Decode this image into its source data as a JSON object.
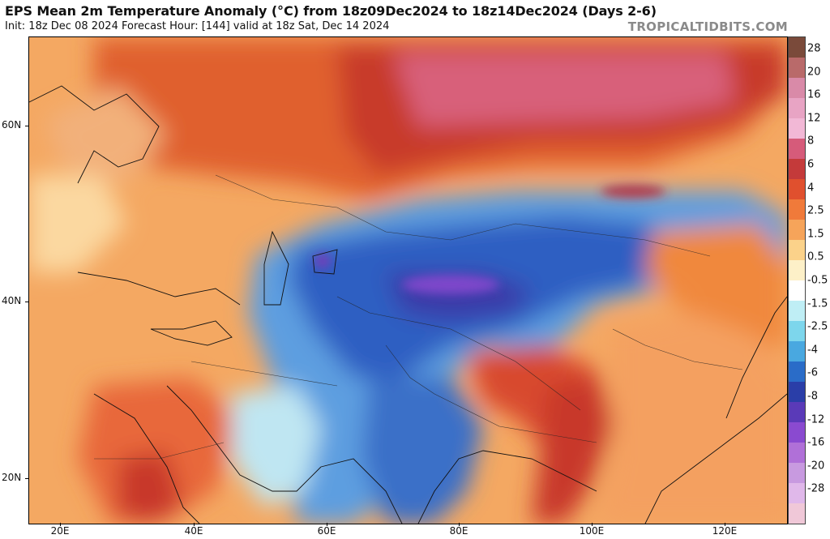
{
  "header": {
    "title": "EPS Mean 2m Temperature Anomaly (°C) from 18z09Dec2024 to 18z14Dec2024 (Days 2-6)",
    "subtitle": "Init: 18z Dec 08 2024   Forecast Hour: [144]   valid at 18z Sat, Dec 14 2024",
    "brand": "TROPICALTIDBITS.COM"
  },
  "axes": {
    "latitudes": [
      "60N",
      "40N",
      "20N"
    ],
    "longitudes": [
      "20E",
      "40E",
      "60E",
      "80E",
      "100E",
      "120E"
    ]
  },
  "colorbar": {
    "labels": [
      "28",
      "20",
      "16",
      "12",
      "8",
      "6",
      "4",
      "2.5",
      "1.5",
      "0.5",
      "-0.5",
      "-1.5",
      "-2.5",
      "-4",
      "-6",
      "-8",
      "-12",
      "-16",
      "-20",
      "-28"
    ],
    "colors": [
      "#7a4a3a",
      "#b96a6a",
      "#d98aa8",
      "#e8a4c4",
      "#f2b8d6",
      "#d65b7a",
      "#c43a3a",
      "#e0502e",
      "#f07a3a",
      "#f6a45a",
      "#fbd28a",
      "#fdf0c8",
      "#ffffff",
      "#bfeef5",
      "#7dd6ec",
      "#49a8e0",
      "#2a6cc8",
      "#2a3ea8",
      "#5a3ab8",
      "#8a4ad0",
      "#b070d8",
      "#c89ae0",
      "#e0b8ea",
      "#f0c8d8"
    ]
  }
}
